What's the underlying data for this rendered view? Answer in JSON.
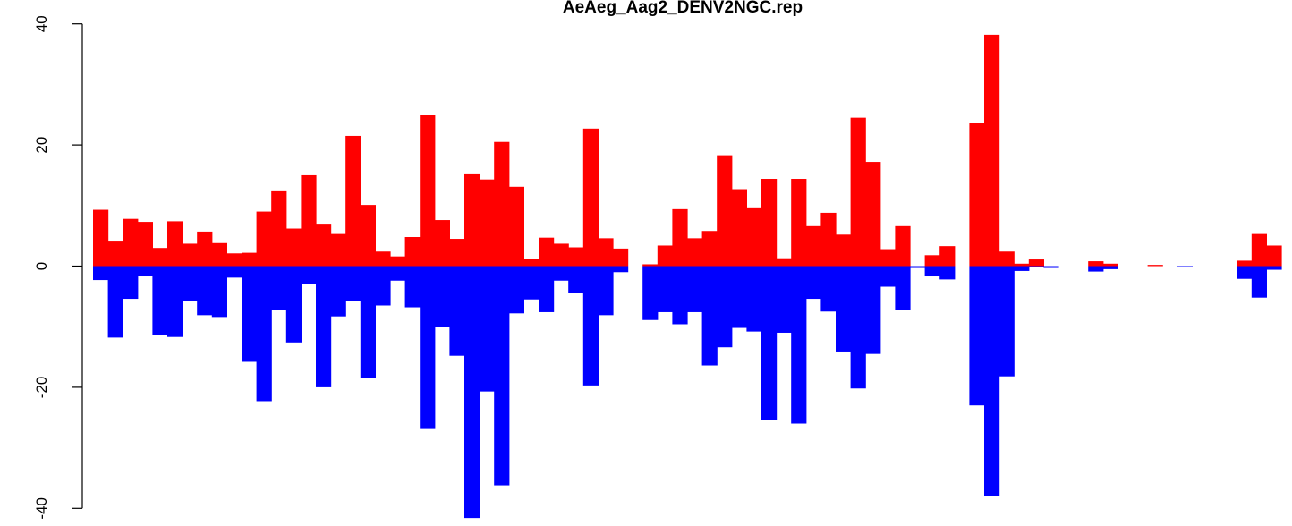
{
  "chart_data": {
    "type": "bar",
    "title": "AeAeg_Aag2_DENV2NGC.rep",
    "xlabel": "",
    "ylabel": "",
    "ylim": [
      -42,
      40
    ],
    "yticks": [
      -40,
      -20,
      0,
      20,
      40
    ],
    "ytick_labels": [
      "-40",
      "-20",
      "0",
      "20",
      "40"
    ],
    "grid": false,
    "legend": "none",
    "series": [
      {
        "color": "#ff0000",
        "values": [
          9.3,
          4.2,
          7.8,
          7.3,
          3.0,
          7.4,
          3.7,
          5.7,
          3.8,
          2.1,
          2.2,
          9.0,
          12.5,
          6.2,
          15.0,
          7.0,
          5.3,
          21.5,
          10.1,
          2.4,
          1.6,
          4.8,
          24.9,
          7.6,
          4.5,
          15.3,
          14.3,
          20.5,
          13.1,
          1.2,
          4.7,
          3.7,
          3.1,
          22.7,
          4.6,
          2.9,
          0.0,
          0.3,
          3.4,
          9.4,
          4.6,
          5.8,
          18.3,
          12.7,
          9.7,
          14.4,
          1.3,
          14.4,
          6.6,
          8.8,
          5.2,
          24.5,
          17.2,
          2.8,
          6.6,
          0.0,
          1.8,
          3.3,
          0.0,
          23.7,
          38.2,
          2.4,
          0.4,
          1.1,
          0.0,
          0.0,
          0.0,
          0.8,
          0.4,
          0.0,
          0.0,
          0.2,
          0.0,
          0.0,
          0.0,
          0.0,
          0.0,
          0.9,
          5.3,
          3.4
        ]
      },
      {
        "color": "#0000ff",
        "values": [
          -2.3,
          -11.8,
          -5.4,
          -1.7,
          -11.3,
          -11.7,
          -5.8,
          -8.1,
          -8.4,
          -1.9,
          -15.8,
          -22.3,
          -7.2,
          -12.6,
          -2.9,
          -20.0,
          -8.3,
          -5.7,
          -18.4,
          -6.5,
          -2.4,
          -6.8,
          -26.9,
          -10.0,
          -14.8,
          -41.6,
          -20.7,
          -36.2,
          -7.8,
          -5.5,
          -7.6,
          -2.4,
          -4.4,
          -19.7,
          -8.1,
          -1.0,
          0.0,
          -8.9,
          -7.6,
          -9.6,
          -7.6,
          -16.4,
          -13.4,
          -10.2,
          -10.8,
          -25.4,
          -11.0,
          -26.0,
          -5.4,
          -7.5,
          -14.1,
          -20.2,
          -14.5,
          -3.4,
          -7.2,
          -0.3,
          -1.7,
          -2.2,
          0.0,
          -23.0,
          -37.9,
          -18.2,
          -0.8,
          -0.1,
          -0.3,
          0.0,
          0.0,
          -0.9,
          -0.5,
          0.0,
          0.0,
          0.0,
          0.0,
          -0.2,
          0.0,
          0.0,
          0.0,
          -2.1,
          -5.2,
          -0.6
        ]
      }
    ]
  }
}
